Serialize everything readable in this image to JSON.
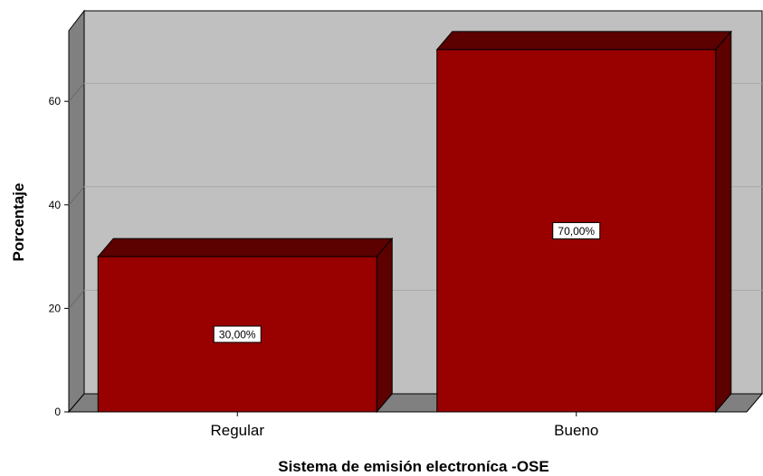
{
  "chart_data": {
    "type": "bar",
    "title": "",
    "xlabel": "Sistema de emisión electroníca -OSE",
    "ylabel": "Porcentaje",
    "categories": [
      "Regular",
      "Bueno"
    ],
    "values": [
      30,
      70
    ],
    "data_labels": [
      "30,00%",
      "70,00%"
    ],
    "yticks": [
      0,
      20,
      40,
      60
    ],
    "ylim": [
      0,
      75
    ],
    "grid": true,
    "style": "3d",
    "colors": {
      "bar_front": "#990000",
      "bar_top": "#5c0000",
      "bar_side": "#5c0000",
      "wall": "#c0c0c0",
      "floor": "#808080",
      "side_wall": "#808080"
    }
  }
}
